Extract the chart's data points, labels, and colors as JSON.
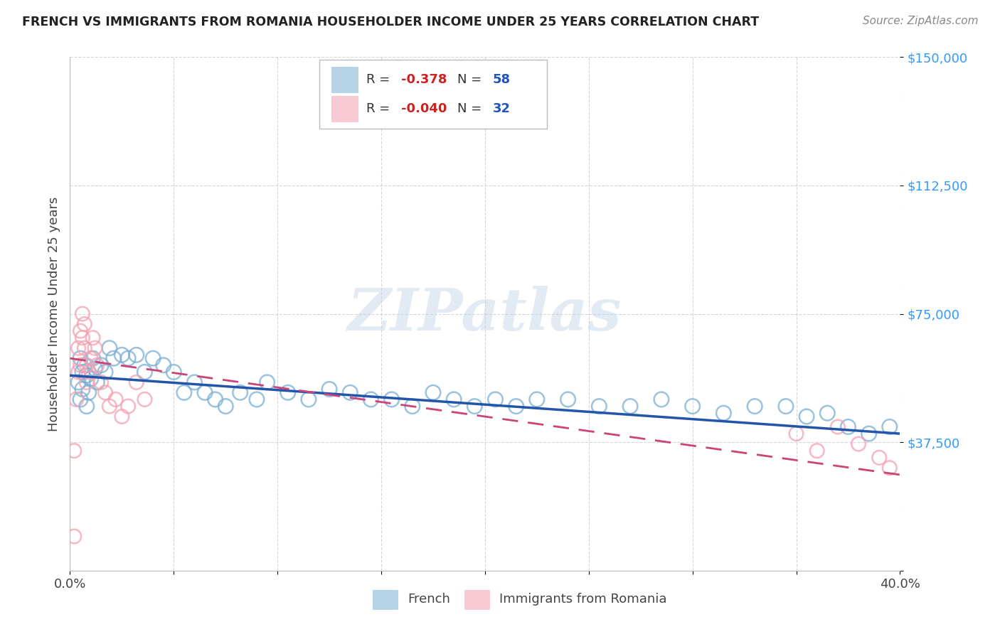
{
  "title": "FRENCH VS IMMIGRANTS FROM ROMANIA HOUSEHOLDER INCOME UNDER 25 YEARS CORRELATION CHART",
  "source": "Source: ZipAtlas.com",
  "ylabel": "Householder Income Under 25 years",
  "xlim": [
    0.0,
    0.4
  ],
  "ylim": [
    0,
    150000
  ],
  "french_color": "#7bafd4",
  "french_line_color": "#2255aa",
  "romania_color": "#f4a0b0",
  "romania_line_color": "#cc4477",
  "french_R": -0.378,
  "french_N": 58,
  "romania_R": -0.04,
  "romania_N": 32,
  "watermark": "ZIPatlas",
  "title_color": "#222222",
  "source_color": "#888888",
  "ylabel_color": "#444444",
  "ytick_color": "#3399ff",
  "xtick_color": "#444444",
  "grid_color": "#cccccc",
  "french_x": [
    0.004,
    0.005,
    0.005,
    0.006,
    0.006,
    0.007,
    0.008,
    0.008,
    0.009,
    0.01,
    0.011,
    0.012,
    0.013,
    0.015,
    0.017,
    0.019,
    0.021,
    0.025,
    0.028,
    0.032,
    0.036,
    0.04,
    0.045,
    0.05,
    0.055,
    0.06,
    0.065,
    0.07,
    0.075,
    0.082,
    0.09,
    0.095,
    0.105,
    0.115,
    0.125,
    0.135,
    0.145,
    0.155,
    0.165,
    0.175,
    0.185,
    0.195,
    0.205,
    0.215,
    0.225,
    0.24,
    0.255,
    0.27,
    0.285,
    0.3,
    0.315,
    0.33,
    0.345,
    0.355,
    0.365,
    0.375,
    0.385,
    0.395
  ],
  "french_y": [
    55000,
    62000,
    50000,
    58000,
    53000,
    60000,
    57000,
    48000,
    52000,
    56000,
    62000,
    59000,
    55000,
    60000,
    58000,
    65000,
    62000,
    63000,
    62000,
    63000,
    58000,
    62000,
    60000,
    58000,
    52000,
    55000,
    52000,
    50000,
    48000,
    52000,
    50000,
    55000,
    52000,
    50000,
    53000,
    52000,
    50000,
    50000,
    48000,
    52000,
    50000,
    48000,
    50000,
    48000,
    50000,
    50000,
    48000,
    48000,
    50000,
    48000,
    46000,
    48000,
    48000,
    45000,
    46000,
    42000,
    40000,
    42000
  ],
  "romania_x": [
    0.002,
    0.003,
    0.004,
    0.004,
    0.005,
    0.005,
    0.006,
    0.006,
    0.007,
    0.007,
    0.008,
    0.008,
    0.009,
    0.01,
    0.011,
    0.012,
    0.013,
    0.015,
    0.017,
    0.019,
    0.022,
    0.025,
    0.028,
    0.032,
    0.036,
    0.35,
    0.36,
    0.37,
    0.38,
    0.39,
    0.395,
    0.002
  ],
  "romania_y": [
    35000,
    50000,
    58000,
    65000,
    60000,
    70000,
    68000,
    75000,
    72000,
    65000,
    60000,
    55000,
    58000,
    62000,
    68000,
    65000,
    60000,
    55000,
    52000,
    48000,
    50000,
    45000,
    48000,
    55000,
    50000,
    40000,
    35000,
    42000,
    37000,
    33000,
    30000,
    10000
  ]
}
